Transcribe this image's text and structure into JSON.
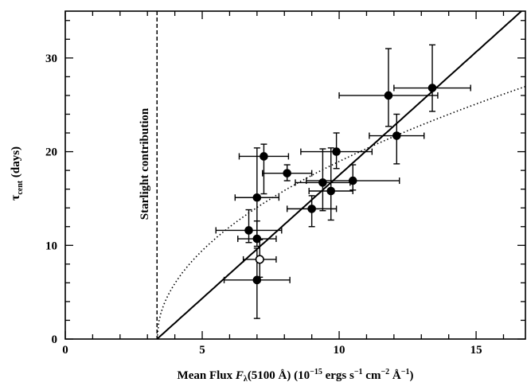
{
  "chart_data": {
    "type": "scatter",
    "title": "",
    "xlabel_parts": {
      "a": "Mean Flux ",
      "b": "F",
      "c": "λ",
      "d": "(5100 Å) (10",
      "e": "−15",
      "f": " ergs s",
      "g": "−1",
      "h": " cm",
      "i": "−2",
      "j": " Å",
      "k": "−1",
      "l": ")"
    },
    "ylabel_parts": {
      "a": "τ",
      "b": "cent",
      "c": " (days)"
    },
    "xlim": [
      0,
      16.8
    ],
    "ylim": [
      0,
      35
    ],
    "x_ticks": [
      0,
      5,
      10,
      15
    ],
    "y_ticks": [
      0,
      10,
      20,
      30
    ],
    "annotation": "Starlight contribution",
    "starlight_x": 3.35,
    "series": [
      {
        "marker": "filled",
        "points": [
          {
            "x": 13.4,
            "y": 26.8,
            "xerr": [
              1.4,
              1.4
            ],
            "yerr": [
              2.5,
              4.6
            ]
          },
          {
            "x": 11.8,
            "y": 26.0,
            "xerr": [
              1.8,
              1.8
            ],
            "yerr": [
              3.3,
              5.0
            ]
          },
          {
            "x": 12.1,
            "y": 21.7,
            "xerr": [
              1.0,
              1.0
            ],
            "yerr": [
              3.0,
              2.3
            ]
          },
          {
            "x": 9.9,
            "y": 20.0,
            "xerr": [
              1.3,
              1.3
            ],
            "yerr": [
              1.8,
              2.0
            ]
          },
          {
            "x": 7.25,
            "y": 19.5,
            "xerr": [
              0.9,
              0.9
            ],
            "yerr": [
              4.0,
              1.3
            ]
          },
          {
            "x": 8.1,
            "y": 17.7,
            "xerr": [
              0.9,
              0.9
            ],
            "yerr": [
              0.8,
              0.9
            ]
          },
          {
            "x": 10.5,
            "y": 16.9,
            "xerr": [
              1.7,
              1.7
            ],
            "yerr": [
              1.0,
              1.7
            ]
          },
          {
            "x": 9.4,
            "y": 16.7,
            "xerr": [
              1.0,
              1.0
            ],
            "yerr": [
              3.0,
              3.6
            ]
          },
          {
            "x": 9.7,
            "y": 15.8,
            "xerr": [
              0.8,
              0.8
            ],
            "yerr": [
              3.1,
              4.6
            ]
          },
          {
            "x": 7.0,
            "y": 15.1,
            "xerr": [
              0.8,
              0.8
            ],
            "yerr": [
              4.5,
              5.3
            ]
          },
          {
            "x": 9.0,
            "y": 13.9,
            "xerr": [
              0.9,
              0.9
            ],
            "yerr": [
              1.9,
              1.4
            ]
          },
          {
            "x": 6.7,
            "y": 11.6,
            "xerr": [
              1.2,
              1.2
            ],
            "yerr": [
              1.3,
              2.2
            ]
          },
          {
            "x": 7.0,
            "y": 10.7,
            "xerr": [
              0.7,
              0.7
            ],
            "yerr": [
              0.8,
              1.9
            ]
          },
          {
            "x": 7.0,
            "y": 6.3,
            "xerr": [
              1.2,
              1.2
            ],
            "yerr": [
              4.1,
              3.4
            ]
          }
        ]
      },
      {
        "marker": "open",
        "points": [
          {
            "x": 7.1,
            "y": 8.5,
            "xerr": [
              0.6,
              0.6
            ],
            "yerr": [
              1.9,
              2.1
            ]
          }
        ]
      }
    ],
    "fits": [
      {
        "style": "solid",
        "form": "linear",
        "x0": 3.35,
        "slope": 2.63
      },
      {
        "style": "dotted",
        "form": "sqrt",
        "x0": 3.35,
        "coef": 7.35
      }
    ]
  }
}
